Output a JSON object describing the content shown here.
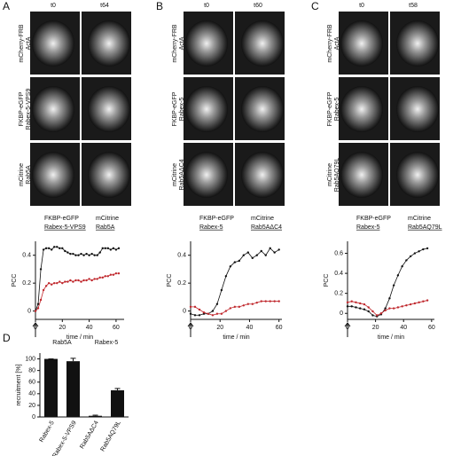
{
  "panels": [
    {
      "letter": "A",
      "columns": [
        "t0",
        "t64"
      ],
      "rows": [
        {
          "tag": "mCherry-FRB",
          "name": "ActA"
        },
        {
          "tag": "FKBP-eGFP",
          "name": "Rabex-5-VPS9"
        },
        {
          "tag": "mCitrine",
          "name": "Rab5A"
        }
      ]
    },
    {
      "letter": "B",
      "columns": [
        "t0",
        "t60"
      ],
      "rows": [
        {
          "tag": "mCherry-FRB",
          "name": "ActA"
        },
        {
          "tag": "FKBP-eGFP",
          "name": "Rabex-5"
        },
        {
          "tag": "mCitrine",
          "name": "Rab5AΔC4"
        }
      ]
    },
    {
      "letter": "C",
      "columns": [
        "t0",
        "t58"
      ],
      "rows": [
        {
          "tag": "mCherry-FRB",
          "name": "ActA"
        },
        {
          "tag": "FKBP-eGFP",
          "name": "Rabex-5"
        },
        {
          "tag": "mCitrine",
          "name": "Rab5AQ79L"
        }
      ]
    },
    {
      "letter": "D"
    }
  ],
  "chart_data": [
    {
      "type": "line",
      "xlabel": "time / min",
      "ylabel": "PCC",
      "xlim": [
        0,
        66
      ],
      "xticks": [
        0,
        20,
        40,
        60
      ],
      "ylim": [
        -0.06,
        0.5
      ],
      "yticks": [
        0,
        0.2,
        0.4
      ],
      "series": [
        {
          "name": "Rabex-5-VPS9",
          "tag": "FKBP-eGFP",
          "color": "#111111",
          "x": [
            0,
            2,
            4,
            6,
            8,
            10,
            12,
            14,
            16,
            18,
            20,
            22,
            24,
            26,
            28,
            30,
            32,
            34,
            36,
            38,
            40,
            42,
            44,
            46,
            48,
            50,
            52,
            54,
            56,
            58,
            60,
            62
          ],
          "values": [
            0,
            0.05,
            0.3,
            0.44,
            0.45,
            0.45,
            0.44,
            0.46,
            0.46,
            0.45,
            0.45,
            0.43,
            0.42,
            0.41,
            0.41,
            0.4,
            0.4,
            0.41,
            0.4,
            0.41,
            0.4,
            0.41,
            0.4,
            0.4,
            0.42,
            0.45,
            0.45,
            0.45,
            0.44,
            0.45,
            0.44,
            0.45
          ]
        },
        {
          "name": "Rab5A",
          "tag": "mCitrine",
          "color": "#c0282d",
          "x": [
            0,
            2,
            4,
            6,
            8,
            10,
            12,
            14,
            16,
            18,
            20,
            22,
            24,
            26,
            28,
            30,
            32,
            34,
            36,
            38,
            40,
            42,
            44,
            46,
            48,
            50,
            52,
            54,
            56,
            58,
            60,
            62
          ],
          "values": [
            0,
            0.02,
            0.08,
            0.15,
            0.18,
            0.2,
            0.19,
            0.2,
            0.2,
            0.21,
            0.2,
            0.21,
            0.21,
            0.22,
            0.21,
            0.22,
            0.22,
            0.21,
            0.22,
            0.22,
            0.23,
            0.22,
            0.23,
            0.23,
            0.24,
            0.24,
            0.25,
            0.25,
            0.26,
            0.26,
            0.27,
            0.27
          ]
        }
      ]
    },
    {
      "type": "line",
      "xlabel": "time / min",
      "ylabel": "PCC",
      "xlim": [
        0,
        62
      ],
      "xticks": [
        0,
        20,
        40,
        60
      ],
      "ylim": [
        -0.06,
        0.5
      ],
      "yticks": [
        0,
        0.2,
        0.4
      ],
      "series": [
        {
          "name": "Rabex-5",
          "tag": "FKBP-eGFP",
          "color": "#111111",
          "x": [
            0,
            3,
            6,
            9,
            12,
            15,
            18,
            21,
            24,
            27,
            30,
            33,
            36,
            39,
            42,
            45,
            48,
            51,
            54,
            57,
            60
          ],
          "values": [
            -0.02,
            -0.03,
            -0.03,
            -0.02,
            -0.02,
            0,
            0.05,
            0.15,
            0.25,
            0.32,
            0.35,
            0.36,
            0.4,
            0.42,
            0.38,
            0.4,
            0.43,
            0.4,
            0.45,
            0.42,
            0.44
          ]
        },
        {
          "name": "Rab5AΔC4",
          "tag": "mCitrine",
          "color": "#c0282d",
          "x": [
            0,
            3,
            6,
            9,
            12,
            15,
            18,
            21,
            24,
            27,
            30,
            33,
            36,
            39,
            42,
            45,
            48,
            51,
            54,
            57,
            60
          ],
          "values": [
            0.03,
            0.03,
            0.01,
            -0.01,
            -0.02,
            -0.03,
            -0.02,
            -0.02,
            0,
            0.02,
            0.03,
            0.03,
            0.04,
            0.05,
            0.05,
            0.06,
            0.07,
            0.07,
            0.07,
            0.07,
            0.07
          ]
        }
      ]
    },
    {
      "type": "line",
      "xlabel": "time / min",
      "ylabel": "PCC",
      "xlim": [
        0,
        62
      ],
      "xticks": [
        0,
        20,
        40,
        60
      ],
      "ylim": [
        -0.06,
        0.72
      ],
      "yticks": [
        0,
        0.2,
        0.4,
        0.6
      ],
      "series": [
        {
          "name": "Rabex-5",
          "tag": "FKBP-eGFP",
          "color": "#111111",
          "x": [
            0,
            3,
            6,
            9,
            12,
            15,
            18,
            21,
            24,
            27,
            30,
            33,
            36,
            39,
            42,
            45,
            48,
            51,
            54,
            57
          ],
          "values": [
            0.07,
            0.07,
            0.06,
            0.05,
            0.04,
            0.02,
            -0.02,
            -0.03,
            -0.01,
            0.05,
            0.15,
            0.28,
            0.38,
            0.47,
            0.53,
            0.57,
            0.6,
            0.62,
            0.64,
            0.65
          ]
        },
        {
          "name": "Rab5AQ79L",
          "tag": "mCitrine",
          "color": "#c0282d",
          "x": [
            0,
            3,
            6,
            9,
            12,
            15,
            18,
            21,
            24,
            27,
            30,
            33,
            36,
            39,
            42,
            45,
            48,
            51,
            54,
            57
          ],
          "values": [
            0.11,
            0.12,
            0.11,
            0.1,
            0.09,
            0.06,
            0.02,
            -0.02,
            0,
            0.03,
            0.05,
            0.05,
            0.06,
            0.07,
            0.08,
            0.09,
            0.1,
            0.11,
            0.12,
            0.13
          ]
        }
      ]
    },
    {
      "type": "bar",
      "ylabel": "recruitment [%]",
      "groups": [
        "Rab5A",
        "Rabex-5"
      ],
      "categories": [
        "Rabex-5",
        "Rabex-5-VPS9",
        "Rab5AΔC4",
        "Rab5AQ79L"
      ],
      "values": [
        100,
        96,
        2,
        46
      ],
      "errors": [
        0,
        5,
        1,
        3
      ],
      "color": "#111111",
      "ylim": [
        0,
        110
      ],
      "yticks": [
        0,
        20,
        40,
        60,
        80,
        100
      ]
    }
  ]
}
